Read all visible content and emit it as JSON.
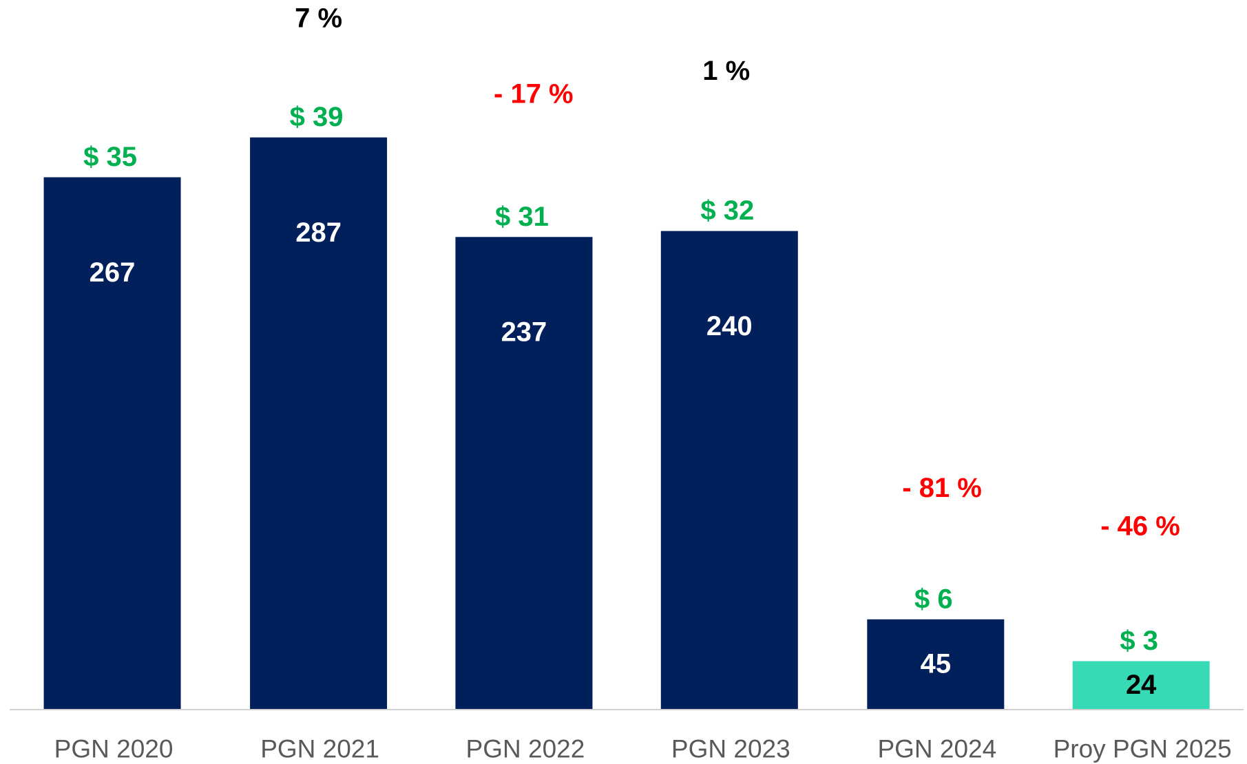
{
  "chart_data": {
    "type": "bar",
    "categories": [
      "PGN 2020",
      "PGN 2021",
      "PGN 2022",
      "PGN 2023",
      "PGN 2024",
      "Proy PGN 2025"
    ],
    "values": [
      267,
      287,
      237,
      240,
      45,
      24
    ],
    "colors": [
      "#00205b",
      "#00205b",
      "#00205b",
      "#00205b",
      "#00205b",
      "#36dbb5"
    ],
    "value_label_colors": [
      "#ffffff",
      "#ffffff",
      "#ffffff",
      "#ffffff",
      "#ffffff",
      "#000000"
    ],
    "price_labels": [
      "$ 35",
      "$ 39",
      "$ 31",
      "$ 32",
      "$ 6",
      "$ 3"
    ],
    "change_labels": [
      null,
      "7 %",
      "- 17 %",
      "1 %",
      "- 81 %",
      "- 46 %"
    ],
    "change_colors": [
      null,
      "#000000",
      "#ff0000",
      "#000000",
      "#ff0000",
      "#ff0000"
    ],
    "ylim": [
      0,
      356
    ]
  }
}
